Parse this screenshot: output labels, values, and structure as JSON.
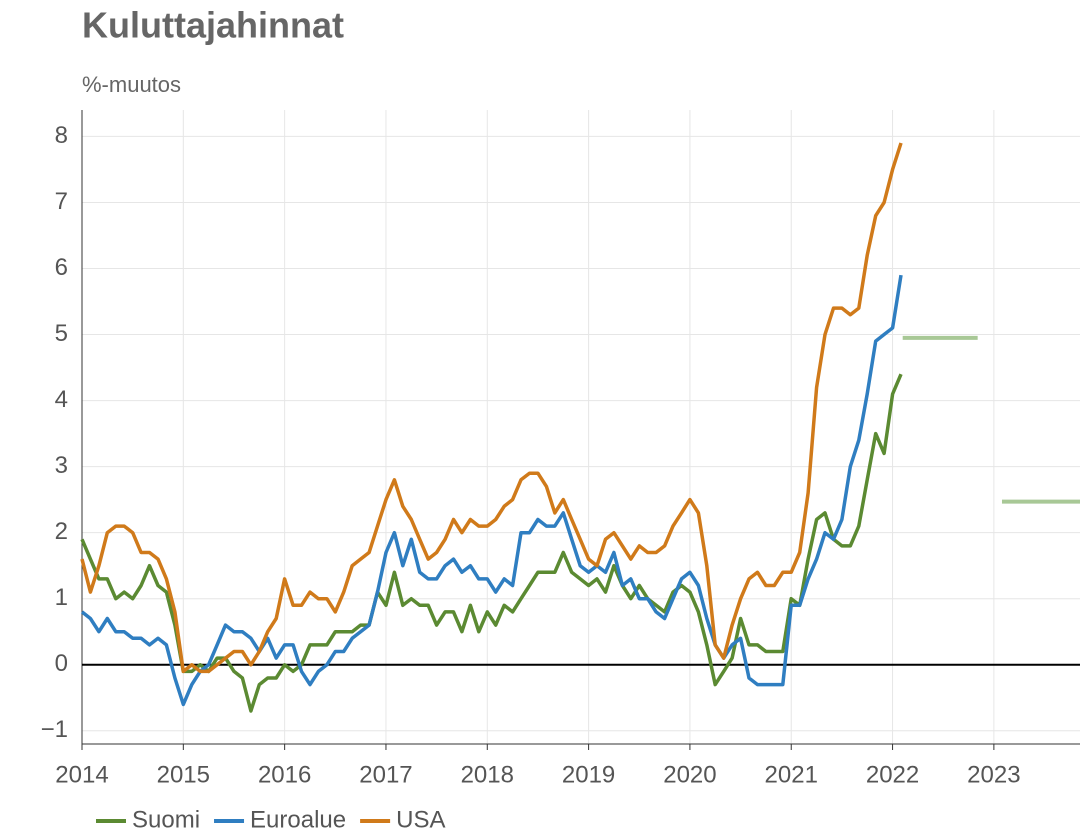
{
  "chart_data": {
    "type": "line",
    "title": "Kuluttajahinnat",
    "subtitle": "%-muutos",
    "x": [
      2014,
      2014.0833,
      2014.1667,
      2014.25,
      2014.3333,
      2014.4167,
      2014.5,
      2014.5833,
      2014.6667,
      2014.75,
      2014.8333,
      2014.9167,
      2015,
      2015.0833,
      2015.1667,
      2015.25,
      2015.3333,
      2015.4167,
      2015.5,
      2015.5833,
      2015.6667,
      2015.75,
      2015.8333,
      2015.9167,
      2016,
      2016.0833,
      2016.1667,
      2016.25,
      2016.3333,
      2016.4167,
      2016.5,
      2016.5833,
      2016.6667,
      2016.75,
      2016.8333,
      2016.9167,
      2017,
      2017.0833,
      2017.1667,
      2017.25,
      2017.3333,
      2017.4167,
      2017.5,
      2017.5833,
      2017.6667,
      2017.75,
      2017.8333,
      2017.9167,
      2018,
      2018.0833,
      2018.1667,
      2018.25,
      2018.3333,
      2018.4167,
      2018.5,
      2018.5833,
      2018.6667,
      2018.75,
      2018.8333,
      2018.9167,
      2019,
      2019.0833,
      2019.1667,
      2019.25,
      2019.3333,
      2019.4167,
      2019.5,
      2019.5833,
      2019.6667,
      2019.75,
      2019.8333,
      2019.9167,
      2020,
      2020.0833,
      2020.1667,
      2020.25,
      2020.3333,
      2020.4167,
      2020.5,
      2020.5833,
      2020.6667,
      2020.75,
      2020.8333,
      2020.9167,
      2021,
      2021.0833,
      2021.1667,
      2021.25,
      2021.3333,
      2021.4167,
      2021.5,
      2021.5833,
      2021.6667,
      2021.75,
      2021.8333,
      2021.9167,
      2022,
      2022.0833
    ],
    "series": [
      {
        "name": "Suomi",
        "color": "#5b8a32",
        "values": [
          1.9,
          1.6,
          1.3,
          1.3,
          1.0,
          1.1,
          1.0,
          1.2,
          1.5,
          1.2,
          1.1,
          0.6,
          -0.1,
          -0.1,
          0.0,
          -0.1,
          0.1,
          0.1,
          -0.1,
          -0.2,
          -0.7,
          -0.3,
          -0.2,
          -0.2,
          0.0,
          -0.1,
          0.0,
          0.3,
          0.3,
          0.3,
          0.5,
          0.5,
          0.5,
          0.6,
          0.6,
          1.1,
          0.9,
          1.4,
          0.9,
          1.0,
          0.9,
          0.9,
          0.6,
          0.8,
          0.8,
          0.5,
          0.9,
          0.5,
          0.8,
          0.6,
          0.9,
          0.8,
          1.0,
          1.2,
          1.4,
          1.4,
          1.4,
          1.7,
          1.4,
          1.3,
          1.2,
          1.3,
          1.1,
          1.5,
          1.2,
          1.0,
          1.2,
          1.0,
          0.9,
          0.8,
          1.1,
          1.2,
          1.1,
          0.8,
          0.3,
          -0.3,
          -0.1,
          0.1,
          0.7,
          0.3,
          0.3,
          0.2,
          0.2,
          0.2,
          1.0,
          0.9,
          1.6,
          2.2,
          2.3,
          1.9,
          1.8,
          1.8,
          2.1,
          2.8,
          3.5,
          3.2,
          4.1,
          4.4
        ]
      },
      {
        "name": "Euroalue",
        "color": "#2f7ec1",
        "values": [
          0.8,
          0.7,
          0.5,
          0.7,
          0.5,
          0.5,
          0.4,
          0.4,
          0.3,
          0.4,
          0.3,
          -0.2,
          -0.6,
          -0.3,
          -0.1,
          0.0,
          0.3,
          0.6,
          0.5,
          0.5,
          0.4,
          0.2,
          0.4,
          0.1,
          0.3,
          0.3,
          -0.1,
          -0.3,
          -0.1,
          0.0,
          0.2,
          0.2,
          0.4,
          0.5,
          0.6,
          1.1,
          1.7,
          2.0,
          1.5,
          1.9,
          1.4,
          1.3,
          1.3,
          1.5,
          1.6,
          1.4,
          1.5,
          1.3,
          1.3,
          1.1,
          1.3,
          1.2,
          2.0,
          2.0,
          2.2,
          2.1,
          2.1,
          2.3,
          1.9,
          1.5,
          1.4,
          1.5,
          1.4,
          1.7,
          1.2,
          1.3,
          1.0,
          1.0,
          0.8,
          0.7,
          1.0,
          1.3,
          1.4,
          1.2,
          0.7,
          0.3,
          0.1,
          0.3,
          0.4,
          -0.2,
          -0.3,
          -0.3,
          -0.3,
          -0.3,
          0.9,
          0.9,
          1.3,
          1.6,
          2.0,
          1.9,
          2.2,
          3.0,
          3.4,
          4.1,
          4.9,
          5.0,
          5.1,
          5.9
        ]
      },
      {
        "name": "USA",
        "color": "#d07a1a",
        "values": [
          1.6,
          1.1,
          1.5,
          2.0,
          2.1,
          2.1,
          2.0,
          1.7,
          1.7,
          1.6,
          1.3,
          0.8,
          -0.1,
          0.0,
          -0.1,
          -0.1,
          0.0,
          0.1,
          0.2,
          0.2,
          0.0,
          0.2,
          0.5,
          0.7,
          1.3,
          0.9,
          0.9,
          1.1,
          1.0,
          1.0,
          0.8,
          1.1,
          1.5,
          1.6,
          1.7,
          2.1,
          2.5,
          2.8,
          2.4,
          2.2,
          1.9,
          1.6,
          1.7,
          1.9,
          2.2,
          2.0,
          2.2,
          2.1,
          2.1,
          2.2,
          2.4,
          2.5,
          2.8,
          2.9,
          2.9,
          2.7,
          2.3,
          2.5,
          2.2,
          1.9,
          1.6,
          1.5,
          1.9,
          2.0,
          1.8,
          1.6,
          1.8,
          1.7,
          1.7,
          1.8,
          2.1,
          2.3,
          2.5,
          2.3,
          1.5,
          0.3,
          0.1,
          0.6,
          1.0,
          1.3,
          1.4,
          1.2,
          1.2,
          1.4,
          1.4,
          1.7,
          2.6,
          4.2,
          5.0,
          5.4,
          5.4,
          5.3,
          5.4,
          6.2,
          6.8,
          7.0,
          7.5,
          7.9
        ]
      }
    ],
    "forecasts": [
      {
        "x": [
          2022.1,
          2022.84
        ],
        "value": 4.95
      },
      {
        "x": [
          2023.08,
          2023.85
        ],
        "value": 2.47
      }
    ],
    "forecast_color": "#a8c896",
    "xlim": [
      2014,
      2023.85
    ],
    "ylim": [
      -1.2,
      8.4
    ],
    "xticks": [
      2014,
      2015,
      2016,
      2017,
      2018,
      2019,
      2020,
      2021,
      2022,
      2023
    ],
    "yticks": [
      {
        "value": -1,
        "label": "−1"
      },
      0,
      1,
      2,
      3,
      4,
      5,
      6,
      7,
      8
    ],
    "grid": true,
    "legend": "bottom-left"
  }
}
